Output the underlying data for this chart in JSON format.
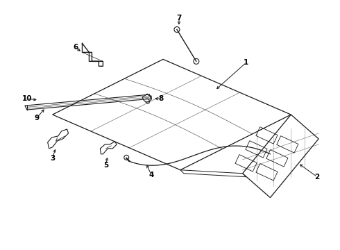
{
  "bg_color": "#ffffff",
  "line_color": "#1a1a1a",
  "label_color": "#000000",
  "figsize": [
    4.9,
    3.6
  ],
  "dpi": 100
}
